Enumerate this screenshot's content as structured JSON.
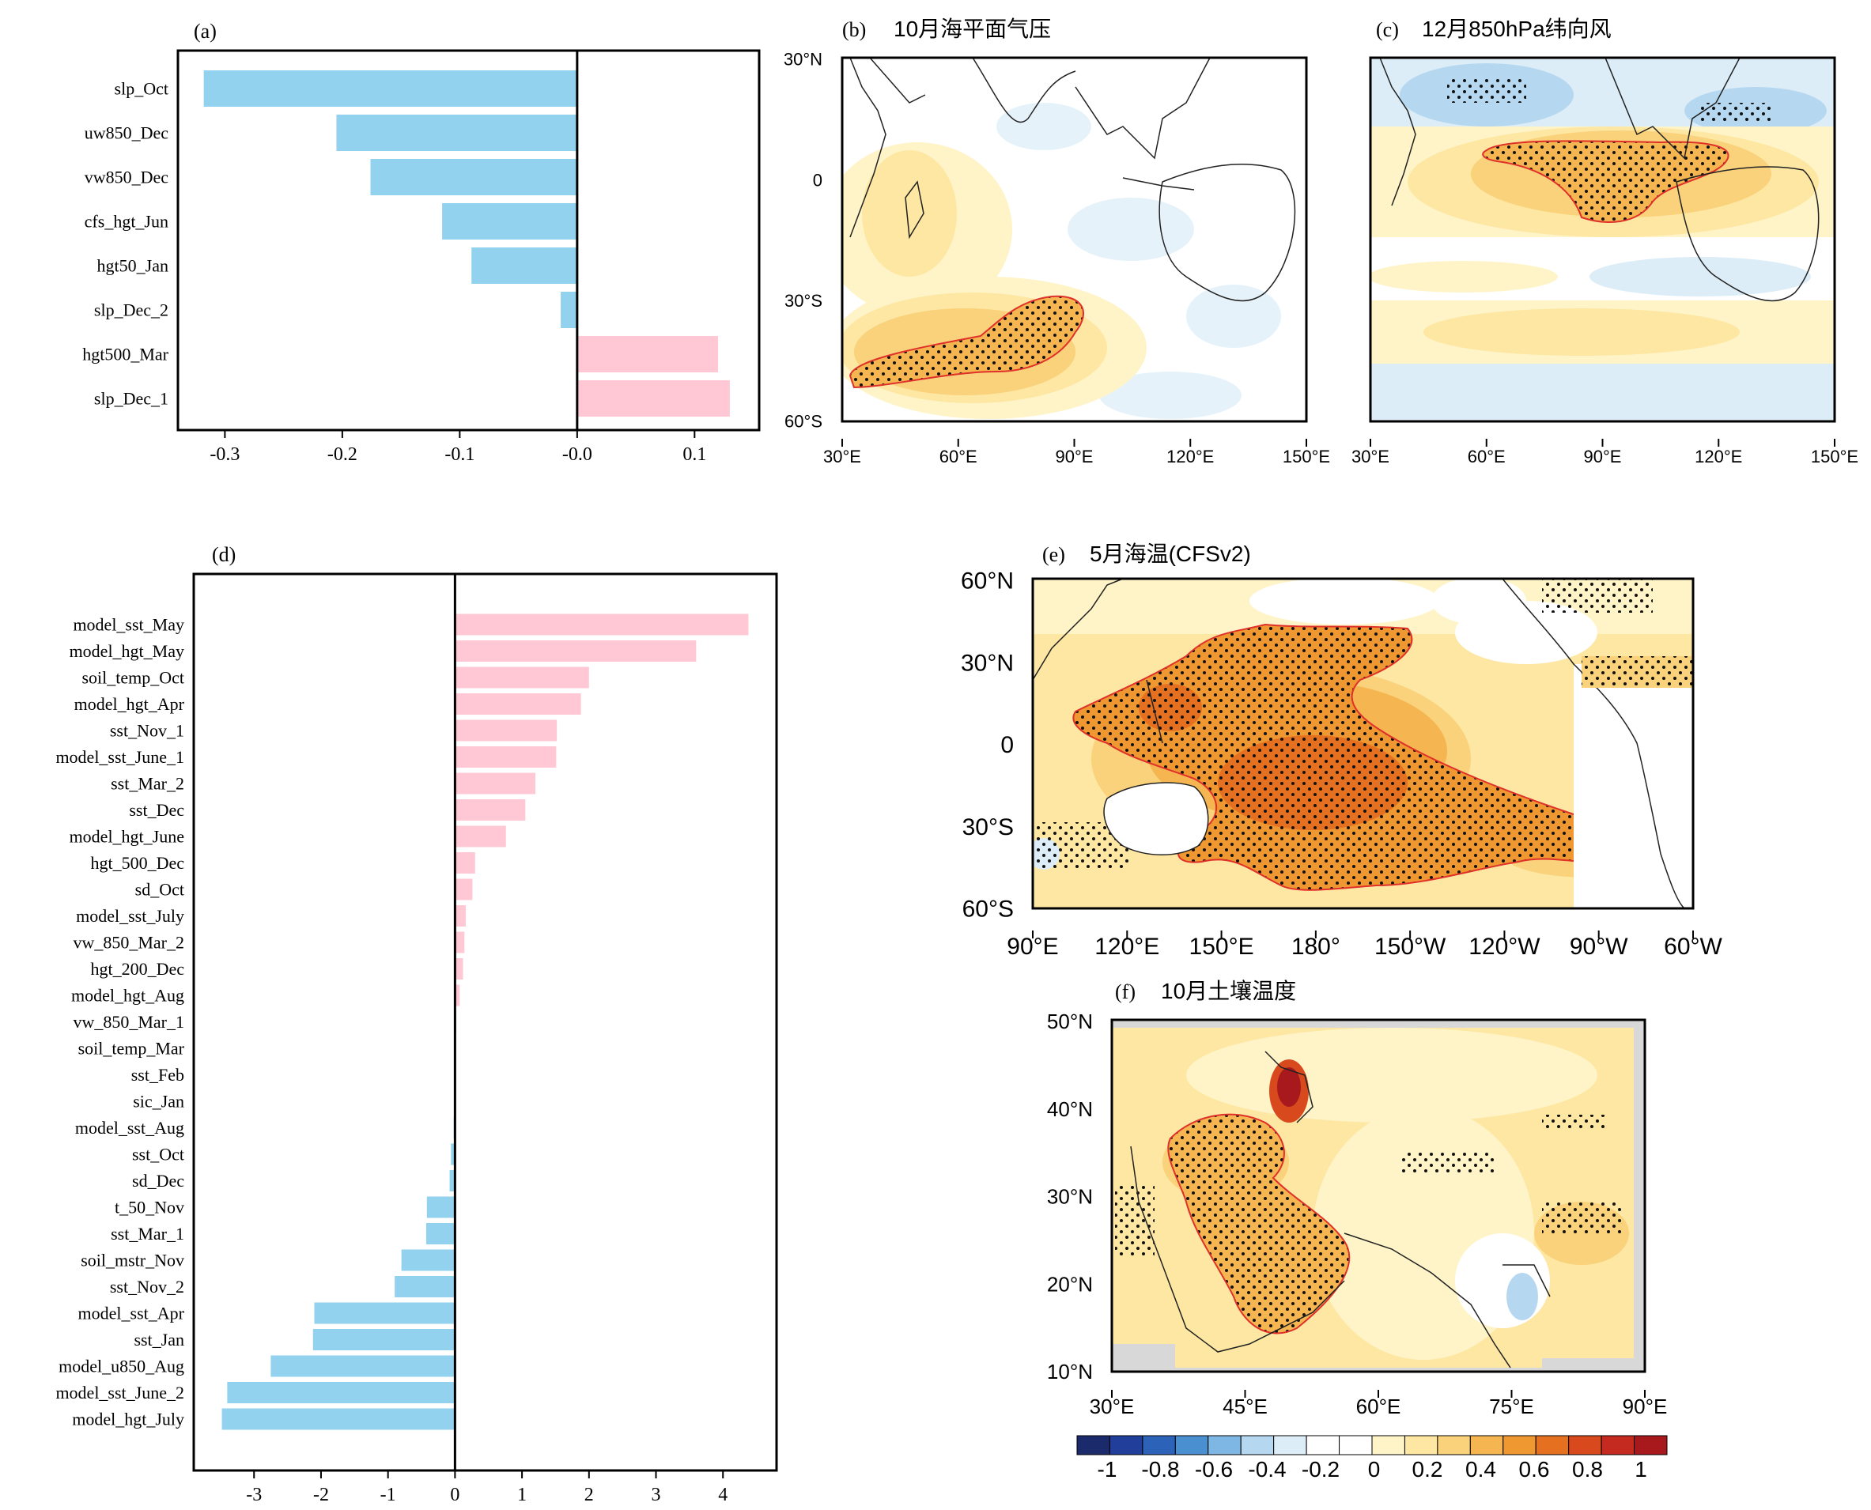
{
  "panels": {
    "a": {
      "tag": "(a)",
      "chart_data": {
        "type": "bar",
        "orientation": "horizontal",
        "categories": [
          "slp_Oct",
          "uw850_Dec",
          "vw850_Dec",
          "cfs_hgt_Jun",
          "hgt50_Jan",
          "slp_Dec_2",
          "hgt500_Mar",
          "slp_Dec_1"
        ],
        "values": [
          -0.318,
          -0.205,
          -0.176,
          -0.115,
          -0.09,
          -0.014,
          0.12,
          0.13
        ],
        "xlim": [
          -0.34,
          0.155
        ],
        "xticks": [
          -0.3,
          -0.2,
          -0.1,
          0.0,
          0.1
        ],
        "xtick_labels": [
          "-0.3",
          "-0.2",
          "-0.1",
          "-0.0",
          "0.1"
        ],
        "positive_color": "#ffc8d4",
        "negative_color": "#92d2ee"
      }
    },
    "b": {
      "tag": "(b)",
      "title": "10月海平面气压",
      "lon_labels": [
        "30°E",
        "60°E",
        "90°E",
        "120°E",
        "150°E"
      ],
      "lat_labels": [
        "30°N",
        "0",
        "30°S",
        "60°S"
      ],
      "lon_range": [
        30,
        150
      ],
      "lat_range": [
        -60,
        30
      ]
    },
    "c": {
      "tag": "(c)",
      "title": "12月850hPa纬向风",
      "lon_labels": [
        "30°E",
        "60°E",
        "90°E",
        "120°E",
        "150°E"
      ],
      "lon_range": [
        30,
        150
      ],
      "lat_range": [
        -60,
        30
      ]
    },
    "d": {
      "tag": "(d)",
      "chart_data": {
        "type": "bar",
        "orientation": "horizontal",
        "categories": [
          "model_sst_May",
          "model_hgt_May",
          "soil_temp_Oct",
          "model_hgt_Apr",
          "sst_Nov_1",
          "model_sst_June_1",
          "sst_Mar_2",
          "sst_Dec",
          "model_hgt_June",
          "hgt_500_Dec",
          "sd_Oct",
          "model_sst_July",
          "vw_850_Mar_2",
          "hgt_200_Dec",
          "model_hgt_Aug",
          "vw_850_Mar_1",
          "soil_temp_Mar",
          "sst_Feb",
          "sic_Jan",
          "model_sst_Aug",
          "sst_Oct",
          "sd_Dec",
          "t_50_Nov",
          "sst_Mar_1",
          "soil_mstr_Nov",
          "sst_Nov_2",
          "model_sst_Apr",
          "sst_Jan",
          "model_u850_Aug",
          "model_sst_June_2",
          "model_hgt_July"
        ],
        "values": [
          4.38,
          3.6,
          2.0,
          1.88,
          1.52,
          1.51,
          1.2,
          1.05,
          0.76,
          0.3,
          0.26,
          0.16,
          0.14,
          0.12,
          0.07,
          0.02,
          0.01,
          0.01,
          -0.01,
          -0.02,
          -0.06,
          -0.08,
          -0.42,
          -0.43,
          -0.8,
          -0.9,
          -2.1,
          -2.12,
          -2.75,
          -3.4,
          -3.48
        ],
        "xlim": [
          -3.9,
          4.8
        ],
        "xticks": [
          -3,
          -2,
          -1,
          0,
          1,
          2,
          3,
          4
        ],
        "xtick_labels": [
          "-3",
          "-2",
          "-1",
          "0",
          "1",
          "2",
          "3",
          "4"
        ],
        "positive_color": "#ffc8d4",
        "negative_color": "#92d2ee"
      }
    },
    "e": {
      "tag": "(e)",
      "title": "5月海温(CFSv2)",
      "lon_labels": [
        "90°E",
        "120°E",
        "150°E",
        "180°",
        "150°W",
        "120°W",
        "90°W",
        "60°W"
      ],
      "lat_labels": [
        "60°N",
        "30°N",
        "0",
        "30°S",
        "60°S"
      ],
      "lon_range": [
        90,
        300
      ],
      "lat_range": [
        -60,
        60
      ]
    },
    "f": {
      "tag": "(f)",
      "title": "10月土壤温度",
      "lon_labels": [
        "30°E",
        "45°E",
        "60°E",
        "75°E",
        "90°E"
      ],
      "lat_labels": [
        "50°N",
        "40°N",
        "30°N",
        "20°N",
        "10°N"
      ],
      "lon_range": [
        30,
        90
      ],
      "lat_range": [
        10,
        50
      ]
    }
  },
  "colorbar": {
    "labels": [
      "-1",
      "-0.8",
      "-0.6",
      "-0.4",
      "-0.2",
      "0",
      "0.2",
      "0.4",
      "0.6",
      "0.8",
      "1"
    ],
    "colors": [
      "#1b2a6b",
      "#213f9a",
      "#2c62b8",
      "#4a8fd0",
      "#7fb7e4",
      "#b5d8f0",
      "#dcedf8",
      "#ffffff",
      "#ffffff",
      "#fff4c8",
      "#fde7a2",
      "#f9d27b",
      "#f5b652",
      "#ef9730",
      "#e5701f",
      "#d84a1e",
      "#c42a20",
      "#a8191d"
    ]
  },
  "map_colors": {
    "ocean_base": "#ffffff",
    "weak_pos": "#fff4c8",
    "mod_pos": "#fde7a2",
    "strong_pos": "#f9d27b",
    "stronger_pos": "#f5b652",
    "high_pos": "#ef9730",
    "very_high": "#e5701f",
    "extreme": "#c42a20",
    "weak_neg": "#dcedf8",
    "mod_neg": "#b5d8f0",
    "sig_contour": "#e0302a",
    "land_mask": "#d8d8d8"
  }
}
